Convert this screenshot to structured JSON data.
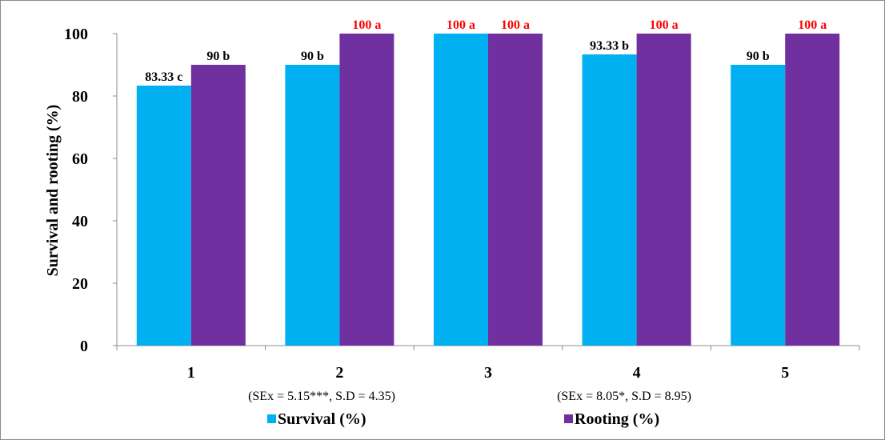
{
  "chart_data": {
    "type": "bar",
    "ylabel": "Survival and rooting (%)",
    "ylim": [
      0,
      100
    ],
    "yticks": [
      0,
      20,
      40,
      60,
      80,
      100
    ],
    "categories": [
      "1",
      "2",
      "3",
      "4",
      "5"
    ],
    "grid": false,
    "legend_position": "bottom",
    "series": [
      {
        "name": "Survival (%)",
        "color": "#00b0f0",
        "values": [
          83.33,
          90,
          100,
          93.33,
          90
        ],
        "labels": [
          "83.33 c",
          "90 b",
          "100 a",
          "93.33 b",
          "90 b"
        ],
        "label_colors": [
          "#000000",
          "#000000",
          "#ff0000",
          "#000000",
          "#000000"
        ]
      },
      {
        "name": "Rooting (%)",
        "color": "#7030a0",
        "values": [
          90,
          100,
          100,
          100,
          100
        ],
        "labels": [
          "90  b",
          "100 a",
          "100 a",
          "100 a",
          "100 a"
        ],
        "label_colors": [
          "#000000",
          "#ff0000",
          "#ff0000",
          "#ff0000",
          "#ff0000"
        ]
      }
    ],
    "annotations": [
      "(SEx = 5.15***, S.D = 4.35)",
      "(SEx = 8.05*, S.D = 8.95)"
    ]
  }
}
